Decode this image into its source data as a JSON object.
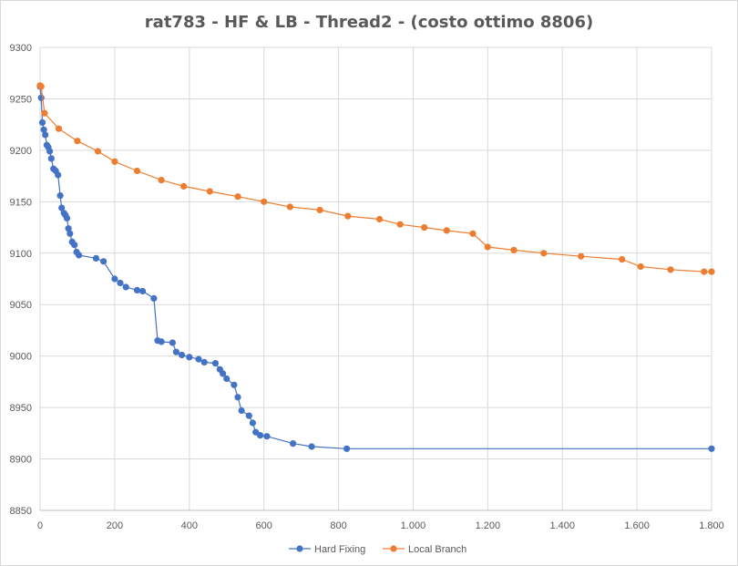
{
  "chart_data": {
    "type": "line",
    "title": "rat783 - HF & LB - Thread2 - (costo ottimo 8806)",
    "xlabel": "",
    "ylabel": "",
    "xlim": [
      0,
      1800
    ],
    "ylim": [
      8850,
      9300
    ],
    "x_ticks": [
      {
        "value": 0,
        "label": "0"
      },
      {
        "value": 200,
        "label": "200"
      },
      {
        "value": 400,
        "label": "400"
      },
      {
        "value": 600,
        "label": "600"
      },
      {
        "value": 800,
        "label": "800"
      },
      {
        "value": 1000,
        "label": "1.000"
      },
      {
        "value": 1200,
        "label": "1.200"
      },
      {
        "value": 1400,
        "label": "1.400"
      },
      {
        "value": 1600,
        "label": "1.600"
      },
      {
        "value": 1800,
        "label": "1.800"
      }
    ],
    "y_ticks": [
      {
        "value": 8850,
        "label": "8850"
      },
      {
        "value": 8900,
        "label": "8900"
      },
      {
        "value": 8950,
        "label": "8950"
      },
      {
        "value": 9000,
        "label": "9000"
      },
      {
        "value": 9050,
        "label": "9050"
      },
      {
        "value": 9100,
        "label": "9100"
      },
      {
        "value": 9150,
        "label": "9150"
      },
      {
        "value": 9200,
        "label": "9200"
      },
      {
        "value": 9250,
        "label": "9250"
      },
      {
        "value": 9300,
        "label": "9300"
      }
    ],
    "grid": true,
    "legend_position": "bottom",
    "series": [
      {
        "name": "Hard Fixing",
        "color": "#4472C4",
        "points": [
          [
            0,
            9262
          ],
          [
            3,
            9251
          ],
          [
            6,
            9227
          ],
          [
            10,
            9220
          ],
          [
            14,
            9215
          ],
          [
            18,
            9205
          ],
          [
            22,
            9203
          ],
          [
            26,
            9199
          ],
          [
            30,
            9192
          ],
          [
            36,
            9182
          ],
          [
            42,
            9180
          ],
          [
            48,
            9176
          ],
          [
            54,
            9156
          ],
          [
            58,
            9144
          ],
          [
            64,
            9139
          ],
          [
            68,
            9137
          ],
          [
            72,
            9134
          ],
          [
            76,
            9124
          ],
          [
            80,
            9119
          ],
          [
            86,
            9111
          ],
          [
            92,
            9108
          ],
          [
            98,
            9101
          ],
          [
            104,
            9098
          ],
          [
            150,
            9095
          ],
          [
            170,
            9092
          ],
          [
            200,
            9075
          ],
          [
            215,
            9071
          ],
          [
            230,
            9067
          ],
          [
            260,
            9064
          ],
          [
            275,
            9063
          ],
          [
            305,
            9056
          ],
          [
            315,
            9015
          ],
          [
            325,
            9014
          ],
          [
            355,
            9013
          ],
          [
            365,
            9004
          ],
          [
            380,
            9001
          ],
          [
            400,
            8999
          ],
          [
            425,
            8997
          ],
          [
            440,
            8994
          ],
          [
            470,
            8993
          ],
          [
            482,
            8987
          ],
          [
            490,
            8983
          ],
          [
            500,
            8978
          ],
          [
            520,
            8972
          ],
          [
            530,
            8960
          ],
          [
            540,
            8947
          ],
          [
            560,
            8942
          ],
          [
            570,
            8935
          ],
          [
            578,
            8926
          ],
          [
            590,
            8923
          ],
          [
            608,
            8922
          ],
          [
            678,
            8915
          ],
          [
            728,
            8912
          ],
          [
            822,
            8910
          ],
          [
            1800,
            8910
          ]
        ]
      },
      {
        "name": "Local Branch",
        "color": "#ED7D31",
        "points": [
          [
            0,
            9263
          ],
          [
            3,
            9262
          ],
          [
            12,
            9236
          ],
          [
            50,
            9221
          ],
          [
            100,
            9209
          ],
          [
            155,
            9199
          ],
          [
            200,
            9189
          ],
          [
            260,
            9180
          ],
          [
            325,
            9171
          ],
          [
            385,
            9165
          ],
          [
            455,
            9160
          ],
          [
            530,
            9155
          ],
          [
            600,
            9150
          ],
          [
            670,
            9145
          ],
          [
            750,
            9142
          ],
          [
            825,
            9136
          ],
          [
            910,
            9133
          ],
          [
            965,
            9128
          ],
          [
            1030,
            9125
          ],
          [
            1090,
            9122
          ],
          [
            1160,
            9119
          ],
          [
            1200,
            9106
          ],
          [
            1270,
            9103
          ],
          [
            1350,
            9100
          ],
          [
            1450,
            9097
          ],
          [
            1560,
            9094
          ],
          [
            1610,
            9087
          ],
          [
            1690,
            9084
          ],
          [
            1780,
            9082
          ],
          [
            1800,
            9082
          ]
        ]
      }
    ]
  }
}
